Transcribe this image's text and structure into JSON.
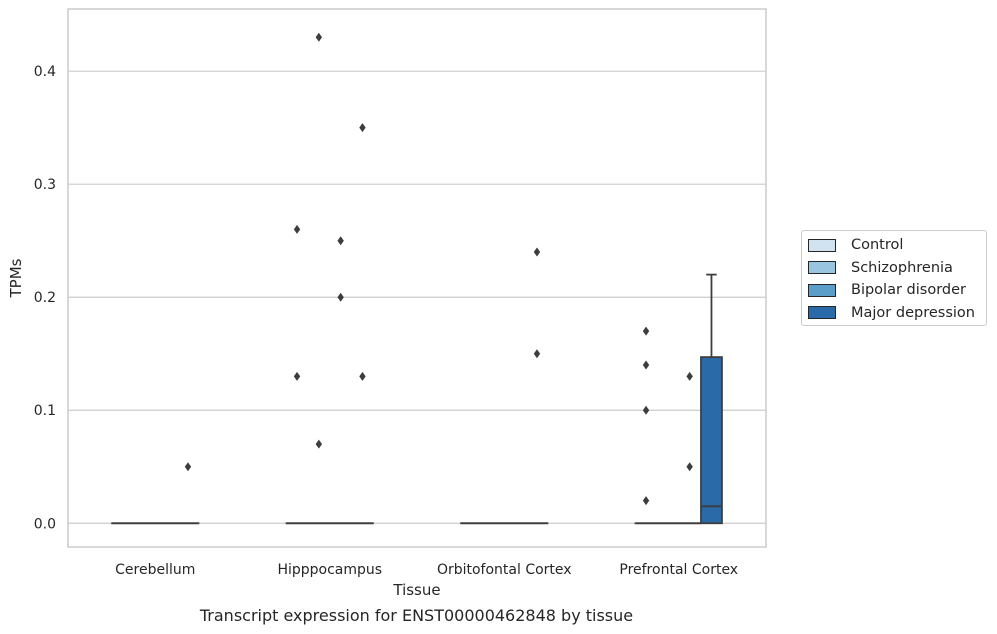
{
  "chart_data": {
    "type": "box",
    "title": "Transcript expression for ENST00000462848 by tissue",
    "xlabel": "Tissue",
    "ylabel": "TPMs",
    "ylim": [
      -0.021,
      0.455
    ],
    "yticks": [
      0.0,
      0.1,
      0.2,
      0.3,
      0.4
    ],
    "ytick_labels": [
      "0.0",
      "0.1",
      "0.2",
      "0.3",
      "0.4"
    ],
    "categories": [
      "Cerebellum",
      "Hipppocampus",
      "Orbitofontal Cortex",
      "Prefrontal Cortex"
    ],
    "grid": "horizontal",
    "legend_position": "right",
    "series": [
      {
        "name": "Control",
        "color": "#d1e2f1",
        "boxes": [
          {
            "category": "Cerebellum",
            "q1": 0,
            "median": 0,
            "q3": 0,
            "whisker_low": 0,
            "whisker_high": 0,
            "outliers": []
          },
          {
            "category": "Hipppocampus",
            "q1": 0,
            "median": 0,
            "q3": 0,
            "whisker_low": 0,
            "whisker_high": 0,
            "outliers": [
              0.26,
              0.13
            ]
          },
          {
            "category": "Orbitofontal Cortex",
            "q1": 0,
            "median": 0,
            "q3": 0,
            "whisker_low": 0,
            "whisker_high": 0,
            "outliers": []
          },
          {
            "category": "Prefrontal Cortex",
            "q1": 0,
            "median": 0,
            "q3": 0,
            "whisker_low": 0,
            "whisker_high": 0,
            "outliers": [
              0.17,
              0.14,
              0.1,
              0.02
            ]
          }
        ]
      },
      {
        "name": "Schizophrenia",
        "color": "#9ac5e0",
        "boxes": [
          {
            "category": "Cerebellum",
            "q1": 0,
            "median": 0,
            "q3": 0,
            "whisker_low": 0,
            "whisker_high": 0,
            "outliers": []
          },
          {
            "category": "Hipppocampus",
            "q1": 0,
            "median": 0,
            "q3": 0,
            "whisker_low": 0,
            "whisker_high": 0,
            "outliers": [
              0.43,
              0.07
            ]
          },
          {
            "category": "Orbitofontal Cortex",
            "q1": 0,
            "median": 0,
            "q3": 0,
            "whisker_low": 0,
            "whisker_high": 0,
            "outliers": []
          },
          {
            "category": "Prefrontal Cortex",
            "q1": 0,
            "median": 0,
            "q3": 0,
            "whisker_low": 0,
            "whisker_high": 0,
            "outliers": []
          }
        ]
      },
      {
        "name": "Bipolar disorder",
        "color": "#5a9ec9",
        "boxes": [
          {
            "category": "Cerebellum",
            "q1": 0,
            "median": 0,
            "q3": 0,
            "whisker_low": 0,
            "whisker_high": 0,
            "outliers": []
          },
          {
            "category": "Hipppocampus",
            "q1": 0,
            "median": 0,
            "q3": 0,
            "whisker_low": 0,
            "whisker_high": 0,
            "outliers": [
              0.25,
              0.2
            ]
          },
          {
            "category": "Orbitofontal Cortex",
            "q1": 0,
            "median": 0,
            "q3": 0,
            "whisker_low": 0,
            "whisker_high": 0,
            "outliers": []
          },
          {
            "category": "Prefrontal Cortex",
            "q1": 0,
            "median": 0,
            "q3": 0,
            "whisker_low": 0,
            "whisker_high": 0,
            "outliers": [
              0.13,
              0.05
            ]
          }
        ]
      },
      {
        "name": "Major depression",
        "color": "#2a6aa8",
        "boxes": [
          {
            "category": "Cerebellum",
            "q1": 0,
            "median": 0,
            "q3": 0,
            "whisker_low": 0,
            "whisker_high": 0,
            "outliers": [
              0.05
            ]
          },
          {
            "category": "Hipppocampus",
            "q1": 0,
            "median": 0,
            "q3": 0,
            "whisker_low": 0,
            "whisker_high": 0,
            "outliers": [
              0.35,
              0.13
            ]
          },
          {
            "category": "Orbitofontal Cortex",
            "q1": 0,
            "median": 0,
            "q3": 0,
            "whisker_low": 0,
            "whisker_high": 0,
            "outliers": [
              0.24,
              0.15
            ]
          },
          {
            "category": "Prefrontal Cortex",
            "q1": 0,
            "median": 0.015,
            "q3": 0.147,
            "whisker_low": 0,
            "whisker_high": 0.22,
            "outliers": []
          }
        ]
      }
    ]
  }
}
